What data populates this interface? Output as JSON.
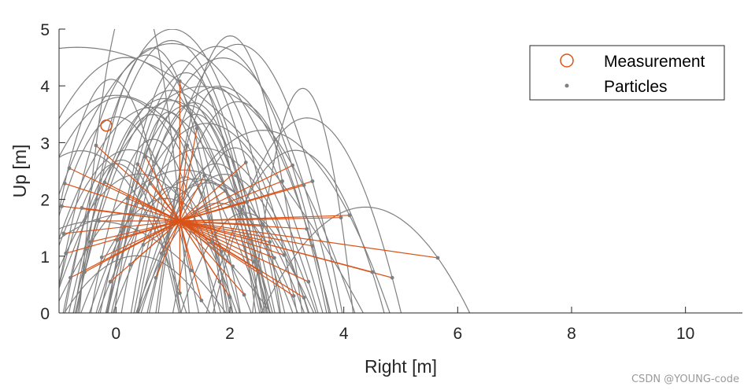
{
  "chart_data": {
    "type": "line",
    "xlabel": "Right [m]",
    "ylabel": "Up [m]",
    "xlim": [
      -1,
      11
    ],
    "ylim": [
      0,
      5
    ],
    "xticks": [
      0,
      2,
      4,
      6,
      8,
      10
    ],
    "yticks": [
      0,
      1,
      2,
      3,
      4,
      5
    ],
    "grid": false,
    "legend": {
      "placement": "top-right",
      "entries": [
        {
          "label": "Measurement",
          "marker": "circle",
          "color": "#d95319"
        },
        {
          "label": "Particles",
          "marker": "dot",
          "color": "#808080"
        }
      ]
    },
    "measurement": {
      "x": -0.17,
      "y": 3.3
    },
    "center": {
      "x": 1.12,
      "y": 1.62
    },
    "particles": [
      {
        "x": 1.12,
        "y": 4.08
      },
      {
        "x": 1.42,
        "y": 3.25
      },
      {
        "x": 2.28,
        "y": 2.65
      },
      {
        "x": 3.1,
        "y": 2.6
      },
      {
        "x": 3.45,
        "y": 2.32
      },
      {
        "x": 3.3,
        "y": 2.25
      },
      {
        "x": 2.92,
        "y": 2.32
      },
      {
        "x": 4.1,
        "y": 1.72
      },
      {
        "x": 3.95,
        "y": 1.68
      },
      {
        "x": 3.35,
        "y": 1.48
      },
      {
        "x": 3.45,
        "y": 1.18
      },
      {
        "x": 5.65,
        "y": 0.97
      },
      {
        "x": 4.85,
        "y": 0.62
      },
      {
        "x": 4.5,
        "y": 0.72
      },
      {
        "x": 3.38,
        "y": 0.55
      },
      {
        "x": 3.3,
        "y": 0.27
      },
      {
        "x": 3.12,
        "y": 0.3
      },
      {
        "x": 2.78,
        "y": 0.97
      },
      {
        "x": 2.55,
        "y": 0.72
      },
      {
        "x": 2.3,
        "y": 1.95
      },
      {
        "x": 1.92,
        "y": 2.15
      },
      {
        "x": 2.58,
        "y": 1.55
      },
      {
        "x": 0.52,
        "y": 2.75
      },
      {
        "x": 0.38,
        "y": 2.62
      },
      {
        "x": -0.35,
        "y": 2.95
      },
      {
        "x": -0.2,
        "y": 2.3
      },
      {
        "x": -0.82,
        "y": 2.55
      },
      {
        "x": -0.9,
        "y": 2.28
      },
      {
        "x": -0.95,
        "y": 1.88
      },
      {
        "x": -0.92,
        "y": 1.4
      },
      {
        "x": -0.88,
        "y": 1.05
      },
      {
        "x": -0.8,
        "y": 0.62
      },
      {
        "x": -0.55,
        "y": 0.72
      },
      {
        "x": -0.45,
        "y": 1.25
      },
      {
        "x": -0.3,
        "y": 1.62
      },
      {
        "x": -0.1,
        "y": 0.55
      },
      {
        "x": 0.25,
        "y": 0.85
      },
      {
        "x": 0.48,
        "y": 1.2
      },
      {
        "x": 0.7,
        "y": 0.62
      },
      {
        "x": 0.8,
        "y": 1.05
      },
      {
        "x": 1.12,
        "y": 0.35
      },
      {
        "x": 1.32,
        "y": 0.75
      },
      {
        "x": 1.5,
        "y": 0.22
      },
      {
        "x": 1.68,
        "y": 1.25
      },
      {
        "x": 1.82,
        "y": 0.55
      },
      {
        "x": 2.0,
        "y": 0.28
      },
      {
        "x": 2.25,
        "y": 0.32
      },
      {
        "x": 2.05,
        "y": 0.82
      },
      {
        "x": 1.85,
        "y": 1.08
      },
      {
        "x": 2.42,
        "y": 0.9
      },
      {
        "x": 0.2,
        "y": 2.02
      },
      {
        "x": 0.6,
        "y": 2.28
      },
      {
        "x": -0.6,
        "y": 1.85
      },
      {
        "x": -0.25,
        "y": 0.98
      },
      {
        "x": 0.02,
        "y": 1.28
      },
      {
        "x": 1.55,
        "y": 2.42
      },
      {
        "x": 2.7,
        "y": 1.25
      },
      {
        "x": 2.95,
        "y": 1.02
      },
      {
        "x": 1.25,
        "y": 2.95
      }
    ]
  },
  "watermark": "CSDN @YOUNG-code"
}
